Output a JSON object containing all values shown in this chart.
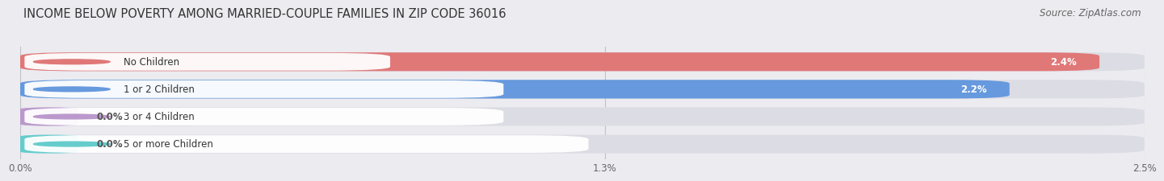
{
  "title": "INCOME BELOW POVERTY AMONG MARRIED-COUPLE FAMILIES IN ZIP CODE 36016",
  "source": "Source: ZipAtlas.com",
  "categories": [
    "No Children",
    "1 or 2 Children",
    "3 or 4 Children",
    "5 or more Children"
  ],
  "values": [
    2.4,
    2.2,
    0.0,
    0.0
  ],
  "bar_colors": [
    "#e07878",
    "#6699dd",
    "#bb99cc",
    "#66cccc"
  ],
  "xlim": [
    0,
    2.5
  ],
  "xticks": [
    0.0,
    1.3,
    2.5
  ],
  "xtick_labels": [
    "0.0%",
    "1.3%",
    "2.5%"
  ],
  "background_color": "#ebebf0",
  "bar_bg_color": "#dcdce4",
  "title_fontsize": 10.5,
  "label_fontsize": 8.5,
  "value_fontsize": 8.5,
  "source_fontsize": 8.5
}
